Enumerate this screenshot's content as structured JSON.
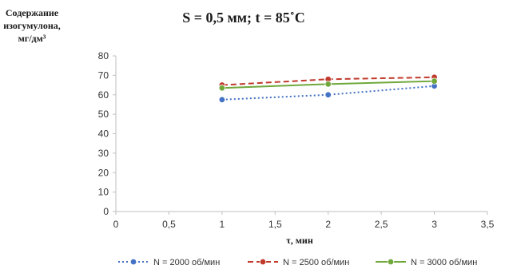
{
  "chart_data": {
    "type": "line",
    "title": "S = 0,5 мм; t = 85˚С",
    "ylabel": [
      "Содержание",
      "изогумулона,",
      "мг/дм³"
    ],
    "xlabel": "τ, мин",
    "xlim": [
      0,
      3.5
    ],
    "ylim": [
      0,
      80
    ],
    "x_ticks": [
      "0",
      "0,5",
      "1",
      "1,5",
      "2",
      "2,5",
      "3",
      "3,5"
    ],
    "y_ticks": [
      "0",
      "10",
      "20",
      "30",
      "40",
      "50",
      "60",
      "70",
      "80"
    ],
    "grid": false,
    "legend_position": "bottom",
    "series": [
      {
        "name": "N = 2000 об/мин",
        "color": "#4472C4",
        "dash": "dotted",
        "x": [
          1,
          2,
          3
        ],
        "y": [
          57.5,
          60,
          64.5
        ]
      },
      {
        "name": "N = 2500 об/мин",
        "color": "#C0392B",
        "dash": "dashed",
        "x": [
          1,
          2,
          3
        ],
        "y": [
          65,
          68,
          69
        ]
      },
      {
        "name": "N = 3000 об/мин",
        "color": "#70A83C",
        "dash": "solid",
        "x": [
          1,
          2,
          3
        ],
        "y": [
          63.5,
          65.5,
          67
        ]
      }
    ]
  }
}
